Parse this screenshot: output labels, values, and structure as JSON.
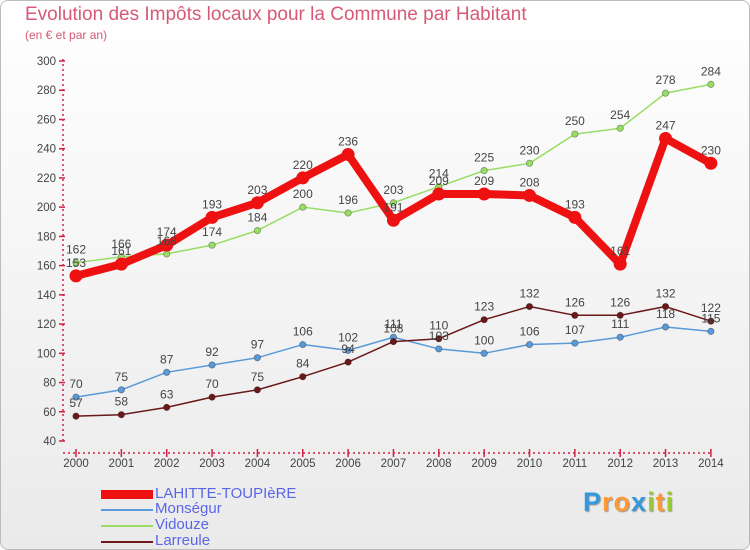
{
  "chart_data": {
    "type": "line",
    "title": "Evolution des Impôts locaux pour la Commune par Habitant",
    "subtitle": "(en € et par an)",
    "xlabel": "",
    "ylabel": "",
    "ylim": [
      40,
      300
    ],
    "yticks": [
      40,
      60,
      80,
      100,
      120,
      140,
      160,
      180,
      200,
      220,
      240,
      260,
      280,
      300
    ],
    "categories": [
      "2000",
      "2001",
      "2002",
      "2003",
      "2004",
      "2005",
      "2006",
      "2007",
      "2008",
      "2009",
      "2010",
      "2011",
      "2012",
      "2013",
      "2014"
    ],
    "series": [
      {
        "name": "LAHITTE-TOUPIèRE",
        "color": "#ee1111",
        "values": [
          153,
          161,
          174,
          193,
          203,
          220,
          236,
          191,
          209,
          209,
          208,
          193,
          161,
          247,
          230
        ]
      },
      {
        "name": "Monségur",
        "color": "#5a9ad8",
        "values": [
          70,
          75,
          87,
          92,
          97,
          106,
          102,
          111,
          103,
          100,
          106,
          107,
          111,
          118,
          115
        ]
      },
      {
        "name": "Vidouze",
        "color": "#99dd66",
        "values": [
          162,
          166,
          168,
          174,
          184,
          200,
          196,
          203,
          214,
          225,
          230,
          250,
          254,
          278,
          284
        ]
      },
      {
        "name": "Larreule",
        "color": "#6a1818",
        "values": [
          57,
          58,
          63,
          70,
          75,
          84,
          94,
          108,
          110,
          123,
          132,
          126,
          126,
          132,
          122
        ]
      }
    ],
    "legend_position": "bottom-left",
    "grid": false
  },
  "logo": {
    "letters": [
      "P",
      "r",
      "o",
      "x",
      "i",
      "t",
      "i"
    ],
    "colors": [
      "#3399dd",
      "#ff9933",
      "#ff9933",
      "#3399dd",
      "#99cc33",
      "#ff9933",
      "#99cc33"
    ]
  }
}
